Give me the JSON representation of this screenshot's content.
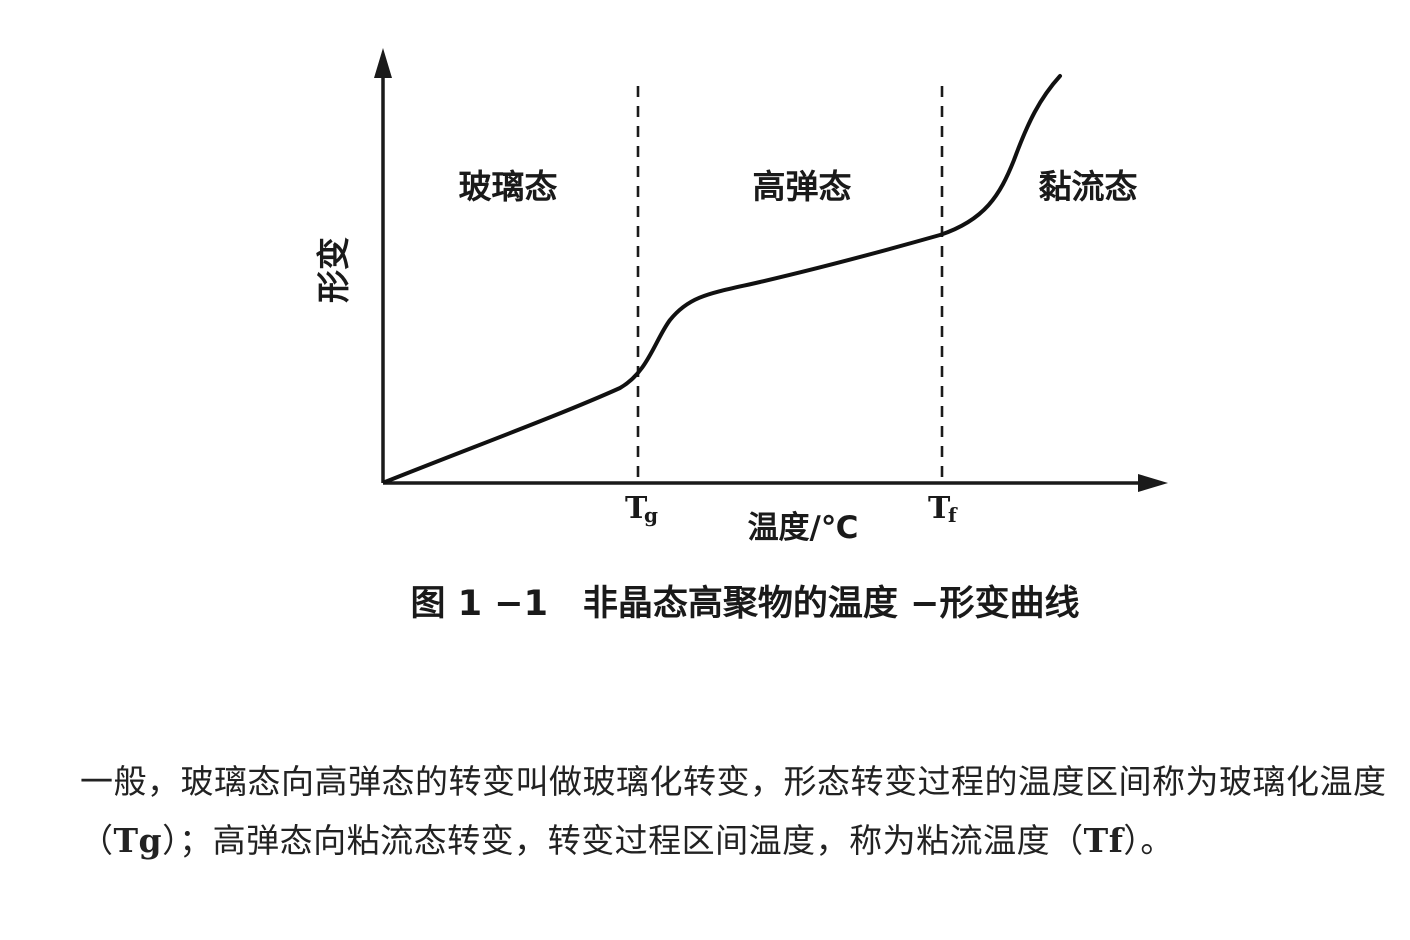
{
  "figure": {
    "chart_data": {
      "type": "line",
      "title": "图 1 −1　非晶态高聚物的温度 −形变曲线",
      "xlabel": "温度/℃",
      "ylabel": "形变",
      "x_ticks": [
        {
          "main": "T",
          "sub": "g"
        },
        {
          "main": "T",
          "sub": "f"
        }
      ],
      "regions": [
        "玻璃态",
        "高弹态",
        "黏流态"
      ],
      "series": [
        {
          "points": [
            [
              0,
              0
            ],
            [
              0.3,
              0.28
            ],
            [
              0.4,
              0.3
            ],
            [
              0.43,
              0.39
            ],
            [
              0.5,
              0.44
            ],
            [
              0.7,
              0.52
            ],
            [
              0.8,
              0.58
            ],
            [
              0.88,
              0.75
            ],
            [
              0.95,
              0.98
            ]
          ]
        }
      ],
      "xlim": [
        0,
        1
      ],
      "ylim": [
        0,
        1
      ],
      "grid": false,
      "legend": "none"
    }
  },
  "paragraph": {
    "text1": "一般，玻璃态向高弹态的转变叫做玻璃化转变，形态转变过程的温度区间称为玻璃化温度（",
    "bold1": "Tg",
    "text2": "）；高弹态向粘流态转变，转变过程区间温度，称为粘流温度（",
    "bold2": "Tf",
    "text3": "）。"
  }
}
